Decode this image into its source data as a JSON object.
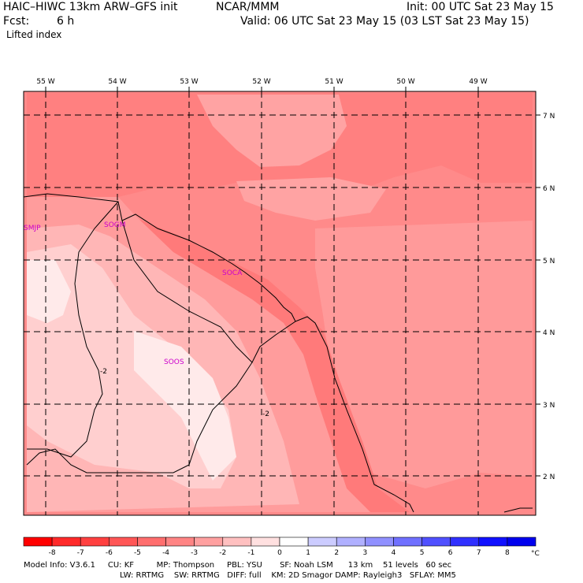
{
  "header": {
    "title_left": "HAIC–HIWC 13km ARW–GFS init",
    "org": "NCAR/MMM",
    "init": "Init: 00 UTC Sat 23 May 15",
    "fcst_label": "Fcst:",
    "fcst_value": "6 h",
    "valid": "Valid: 06 UTC Sat 23 May 15 (03 LST Sat 23 May 15)",
    "field": "Lifted index"
  },
  "map": {
    "lon_labels": [
      "55 W",
      "54 W",
      "53 W",
      "52 W",
      "51 W",
      "50 W",
      "49 W"
    ],
    "lat_labels": [
      "7 N",
      "6 N",
      "5 N",
      "4 N",
      "3 N",
      "2 N"
    ],
    "stations": [
      "SMJP",
      "SOGM",
      "SOCA",
      "SOOS"
    ],
    "contour_labels": [
      "-2",
      "-2"
    ]
  },
  "colorbar": {
    "ticks": [
      "-8",
      "-7",
      "-6",
      "-5",
      "-4",
      "-3",
      "-2",
      "-1",
      "0",
      "1",
      "2",
      "3",
      "4",
      "5",
      "6",
      "7",
      "8"
    ],
    "unit": "°C",
    "colors": [
      "#ff0000",
      "#ff2a2a",
      "#ff4040",
      "#ff5656",
      "#ff6e6e",
      "#ff8484",
      "#ffa0a0",
      "#ffc0c0",
      "#ffe0e0",
      "#ffffff",
      "#ccccff",
      "#b0b0ff",
      "#9090ff",
      "#7070ff",
      "#5050ff",
      "#3030ff",
      "#1010ff",
      "#0000ee"
    ]
  },
  "model_info": {
    "line1": "Model Info: V3.6.1     CU: KF         MP: Thompson     PBL: YSU       SF: Noah LSM      13 km    51 levels   60 sec",
    "line2": "LW: RRTMG    SW: RRTMG   DIFF: full    KM: 2D Smagor DAMP: Rayleigh3   SFLAY: MM5"
  }
}
